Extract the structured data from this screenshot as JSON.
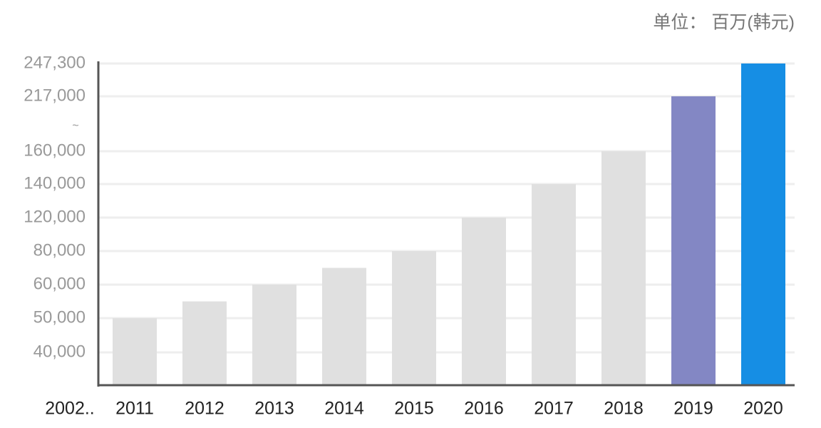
{
  "chart_data": {
    "type": "bar",
    "unit_note": "单位： 百万(韩元)",
    "categories": [
      "2002..",
      "2011",
      "2012",
      "2013",
      "2014",
      "2015",
      "2016",
      "2017",
      "2018",
      "2019",
      "2020"
    ],
    "values": [
      null,
      50000,
      55000,
      60000,
      70000,
      80000,
      120000,
      140000,
      160000,
      217000,
      247300
    ],
    "colors": [
      "#e0e0e0",
      "#e0e0e0",
      "#e0e0e0",
      "#e0e0e0",
      "#e0e0e0",
      "#e0e0e0",
      "#e0e0e0",
      "#e0e0e0",
      "#e0e0e0",
      "#8387c4",
      "#168ee4"
    ],
    "yticks": [
      {
        "value": 40000,
        "label": "40,000"
      },
      {
        "value": 50000,
        "label": "50,000"
      },
      {
        "value": 60000,
        "label": "60,000"
      },
      {
        "value": 80000,
        "label": "80,000"
      },
      {
        "value": 120000,
        "label": "120,000"
      },
      {
        "value": 140000,
        "label": "140,000"
      },
      {
        "value": 160000,
        "label": "160,000"
      },
      {
        "value": 217000,
        "label": "217,000"
      },
      {
        "value": 247300,
        "label": "247,300"
      }
    ],
    "axis_break": "~",
    "grid": true
  }
}
